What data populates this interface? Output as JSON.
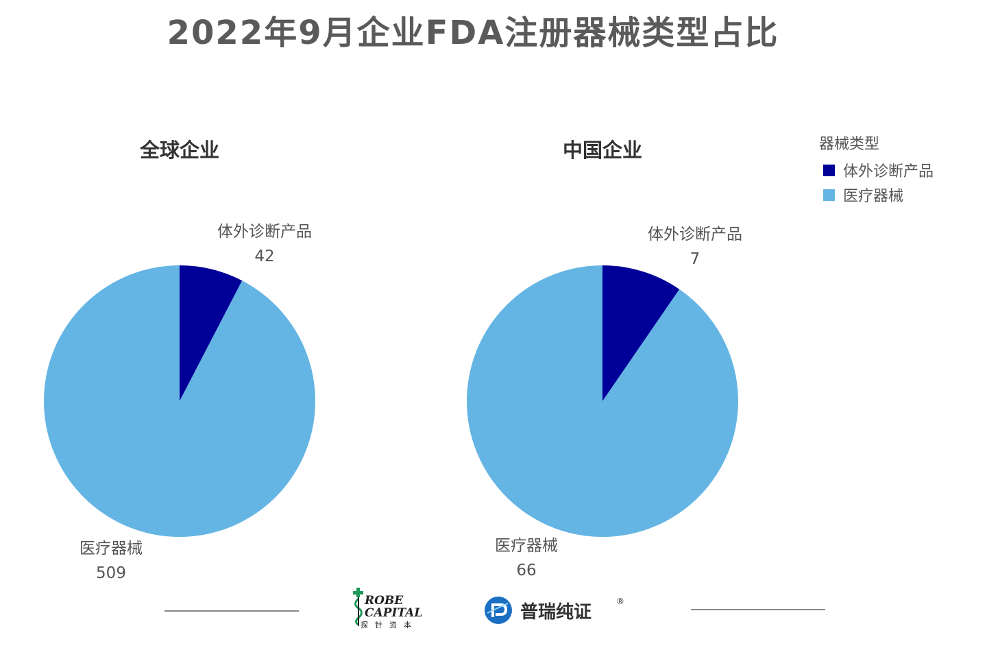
{
  "title": "2022年9月企业FDA注册器械类型占比",
  "colors": {
    "ivd": "#000099",
    "device": "#64b5e3"
  },
  "legend": {
    "title": "器械类型",
    "items": [
      {
        "label": "体外诊断产品",
        "color": "#000099"
      },
      {
        "label": "医疗器械",
        "color": "#64b5e3"
      }
    ]
  },
  "chart_data": [
    {
      "type": "pie",
      "title": "全球企业",
      "categories": [
        "体外诊断产品",
        "医疗器械"
      ],
      "values": [
        42,
        509
      ],
      "colors": [
        "#000099",
        "#64b5e3"
      ],
      "labels": [
        {
          "name": "体外诊断产品",
          "value": "42"
        },
        {
          "name": "医疗器械",
          "value": "509"
        }
      ]
    },
    {
      "type": "pie",
      "title": "中国企业",
      "categories": [
        "体外诊断产品",
        "医疗器械"
      ],
      "values": [
        7,
        66
      ],
      "colors": [
        "#000099",
        "#64b5e3"
      ],
      "labels": [
        {
          "name": "体外诊断产品",
          "value": "7"
        },
        {
          "name": "医疗器械",
          "value": "66"
        }
      ]
    }
  ],
  "logos": {
    "probe": {
      "line1": "ROBE",
      "line2": "CAPITAL",
      "sub": "探针资本"
    },
    "prin": {
      "name": "普瑞纯证",
      "reg": "®"
    }
  }
}
